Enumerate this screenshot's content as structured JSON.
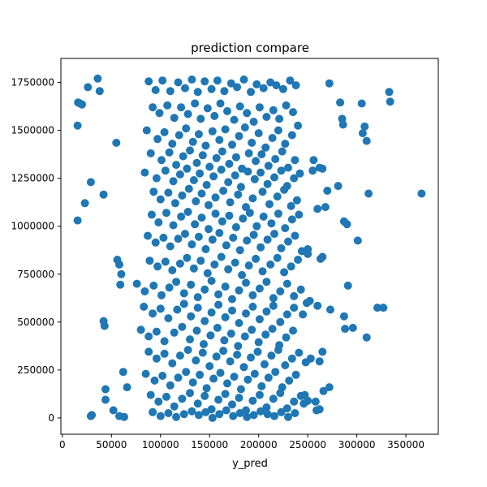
{
  "chart_data": {
    "type": "scatter",
    "title": "prediction compare",
    "xlabel": "y_pred",
    "ylabel": "",
    "xlim": [
      -1500,
      383000
    ],
    "ylim": [
      -85000,
      1875000
    ],
    "x_ticks": [
      0,
      50000,
      100000,
      150000,
      200000,
      250000,
      300000,
      350000
    ],
    "x_tick_labels": [
      "0",
      "50000",
      "100000",
      "150000",
      "200000",
      "250000",
      "300000",
      "350000"
    ],
    "y_ticks": [
      0,
      250000,
      500000,
      750000,
      1000000,
      1250000,
      1500000,
      1750000
    ],
    "y_tick_labels": [
      "0",
      "250000",
      "500000",
      "750000",
      "1000000",
      "1250000",
      "1500000",
      "1750000"
    ],
    "grid": false,
    "legend": "none",
    "marker_color": "#1f77b4",
    "series": [
      {
        "x": [
          16000,
          36000,
          38000,
          26000,
          20000,
          15500,
          18000,
          29000,
          23000,
          42000,
          15500,
          55000,
          58000,
          56000,
          59000,
          60000,
          43000,
          42000,
          30000,
          29000,
          52000,
          44000,
          44000,
          66000,
          58000,
          62000,
          63000,
          301000,
          312000,
          321000,
          327000,
          333000,
          334000,
          366000,
          272000,
          283000,
          285000,
          286000,
          308000,
          306000,
          310000,
          305000,
          290000,
          287000,
          291000,
          296000,
          288000,
          310000,
          270000,
          281000,
          268000,
          260000,
          265000,
          262000,
          255000,
          256000,
          250000,
          250000,
          265000,
          263000,
          249000,
          252000,
          245000,
          260000,
          273000,
          287000,
          265000,
          253000,
          248000,
          262000,
          272000,
          266000,
          247000,
          250000,
          262000,
          259000,
          258000,
          246000
        ],
        "y": [
          1645000,
          1770000,
          1705000,
          1725000,
          1635000,
          1525000,
          1640000,
          1230000,
          1120000,
          1165000,
          1030000,
          1435000,
          800000,
          825000,
          695000,
          750000,
          480000,
          505000,
          15000,
          10000,
          40000,
          95000,
          150000,
          160000,
          10000,
          240000,
          5000,
          925000,
          1170000,
          575000,
          575000,
          1700000,
          1650000,
          1170000,
          1745000,
          1645000,
          1560000,
          1530000,
          1520000,
          1485000,
          1445000,
          1640000,
          1010000,
          1025000,
          690000,
          470000,
          465000,
          420000,
          1185000,
          1210000,
          1100000,
          1090000,
          1300000,
          1305000,
          1290000,
          1345000,
          880000,
          855000,
          840000,
          830000,
          600000,
          610000,
          540000,
          585000,
          565000,
          530000,
          345000,
          310000,
          290000,
          295000,
          160000,
          140000,
          120000,
          90000,
          45000,
          40000,
          85000,
          75000
        ]
      },
      {
        "x": [
          88000,
          95000,
          102000,
          110000,
          118000,
          125000,
          132000,
          138000,
          145000,
          152000,
          158000,
          165000,
          172000,
          178000,
          185000,
          192000,
          198000,
          205000,
          212000,
          218000,
          225000,
          232000,
          238000,
          92000,
          99000,
          107000,
          114000,
          121000,
          128000,
          135000,
          141000,
          148000,
          155000,
          161000,
          168000,
          175000,
          181000,
          188000,
          195000,
          201000,
          208000,
          215000,
          221000,
          228000,
          235000,
          86000,
          97000,
          104000,
          112000,
          119000,
          126000,
          133000,
          139000,
          146000,
          153000,
          160000,
          166000,
          173000,
          180000,
          186000,
          193000,
          200000,
          207000,
          214000,
          220000,
          227000,
          234000,
          240000,
          90000,
          101000,
          109000,
          116000,
          123000,
          130000,
          137000,
          143000,
          150000,
          157000,
          163000,
          170000,
          177000,
          183000,
          190000,
          197000,
          203000,
          210000,
          217000,
          224000,
          230000,
          237000,
          84000,
          96000,
          105000,
          113000,
          120000,
          127000,
          134000,
          140000,
          147000,
          154000,
          162000,
          169000,
          176000,
          182000,
          189000,
          196000,
          202000,
          209000,
          216000,
          223000,
          229000,
          236000,
          242000,
          93000,
          100000,
          108000,
          115000,
          122000,
          129000,
          136000,
          142000,
          149000,
          156000,
          164000,
          171000,
          179000,
          187000,
          194000,
          204000,
          211000,
          219000,
          226000,
          233000,
          239000
        ],
        "y": [
          1755000,
          1710000,
          1760000,
          1705000,
          1750000,
          1720000,
          1765000,
          1700000,
          1755000,
          1715000,
          1760000,
          1705000,
          1745000,
          1725000,
          1765000,
          1700000,
          1740000,
          1720000,
          1750000,
          1735000,
          1715000,
          1760000,
          1735000,
          1620000,
          1590000,
          1630000,
          1565000,
          1620000,
          1585000,
          1640000,
          1560000,
          1615000,
          1575000,
          1640000,
          1600000,
          1555000,
          1625000,
          1590000,
          1545000,
          1620000,
          1570000,
          1605000,
          1560000,
          1630000,
          1595000,
          1500000,
          1455000,
          1490000,
          1430000,
          1475000,
          1510000,
          1440000,
          1480000,
          1420000,
          1495000,
          1450000,
          1505000,
          1425000,
          1470000,
          1515000,
          1435000,
          1485000,
          1410000,
          1460000,
          1500000,
          1430000,
          1475000,
          1525000,
          1380000,
          1345000,
          1385000,
          1320000,
          1365000,
          1395000,
          1330000,
          1370000,
          1310000,
          1355000,
          1390000,
          1325000,
          1360000,
          1300000,
          1380000,
          1340000,
          1375000,
          1315000,
          1350000,
          1390000,
          1305000,
          1345000,
          1280000,
          1250000,
          1290000,
          1235000,
          1270000,
          1300000,
          1240000,
          1275000,
          1215000,
          1260000,
          1295000,
          1230000,
          1265000,
          1205000,
          1285000,
          1245000,
          1280000,
          1220000,
          1255000,
          1290000,
          1210000,
          1250000,
          1275000,
          1180000,
          1140000,
          1175000,
          1120000,
          1160000,
          1195000,
          1130000,
          1170000,
          1110000,
          1150000,
          1185000,
          1125000,
          1165000,
          1100000,
          1145000,
          1180000,
          1115000,
          1155000,
          1190000,
          1105000,
          1135000
        ]
      },
      {
        "x": [
          91000,
          98000,
          106000,
          113000,
          121000,
          128000,
          135000,
          142000,
          149000,
          156000,
          163000,
          170000,
          177000,
          184000,
          191000,
          198000,
          205000,
          213000,
          220000,
          227000,
          234000,
          241000,
          87000,
          95000,
          103000,
          110000,
          118000,
          125000,
          132000,
          139000,
          146000,
          153000,
          160000,
          167000,
          174000,
          181000,
          188000,
          195000,
          202000,
          209000,
          216000,
          223000,
          230000,
          237000,
          244000,
          89000,
          97000,
          105000,
          112000,
          120000,
          127000,
          134000,
          141000,
          148000,
          155000,
          162000,
          169000,
          176000,
          183000,
          190000,
          197000,
          204000,
          212000,
          219000,
          226000,
          233000,
          240000,
          76000,
          84000,
          93000,
          101000,
          109000,
          116000,
          124000,
          131000,
          138000,
          145000,
          152000,
          159000,
          166000,
          173000,
          180000,
          187000,
          194000,
          201000,
          208000,
          215000,
          222000,
          229000,
          236000,
          243000,
          83000,
          92000,
          100000,
          108000,
          117000,
          124000,
          131000,
          138000,
          145000,
          152000,
          159000,
          166000,
          173000,
          180000,
          187000,
          194000,
          201000,
          208000,
          215000,
          222000,
          229000,
          236000,
          80000,
          88000,
          96000,
          104000,
          114000,
          122000,
          130000,
          137000,
          144000,
          151000,
          158000,
          165000,
          172000,
          179000,
          186000,
          193000,
          200000,
          207000,
          214000,
          221000,
          228000,
          235000
        ],
        "y": [
          1060000,
          1020000,
          1070000,
          1005000,
          1050000,
          1075000,
          1010000,
          1045000,
          985000,
          1065000,
          1025000,
          1055000,
          995000,
          1040000,
          1070000,
          1000000,
          1050000,
          1015000,
          1065000,
          990000,
          1035000,
          1060000,
          950000,
          915000,
          940000,
          895000,
          935000,
          960000,
          905000,
          945000,
          880000,
          930000,
          965000,
          900000,
          940000,
          875000,
          925000,
          955000,
          890000,
          930000,
          960000,
          885000,
          920000,
          950000,
          870000,
          820000,
          790000,
          815000,
          770000,
          805000,
          835000,
          780000,
          820000,
          755000,
          800000,
          840000,
          775000,
          810000,
          745000,
          795000,
          830000,
          765000,
          800000,
          835000,
          760000,
          790000,
          825000,
          700000,
          660000,
          690000,
          640000,
          680000,
          710000,
          650000,
          695000,
          630000,
          670000,
          715000,
          645000,
          685000,
          620000,
          665000,
          705000,
          640000,
          675000,
          710000,
          625000,
          660000,
          700000,
          635000,
          670000,
          580000,
          545000,
          570000,
          520000,
          565000,
          595000,
          530000,
          575000,
          505000,
          550000,
          590000,
          525000,
          560000,
          495000,
          545000,
          580000,
          515000,
          555000,
          585000,
          500000,
          540000,
          575000,
          460000,
          425000,
          450000,
          400000,
          445000,
          475000,
          410000,
          455000,
          385000,
          430000,
          470000,
          405000,
          440000,
          375000,
          425000,
          460000,
          395000,
          435000,
          465000,
          380000,
          420000,
          455000
        ]
      },
      {
        "x": [
          88000,
          96000,
          104000,
          112000,
          120000,
          128000,
          136000,
          143000,
          150000,
          157000,
          164000,
          171000,
          178000,
          185000,
          192000,
          199000,
          206000,
          213000,
          220000,
          227000,
          234000,
          241000,
          85000,
          94000,
          102000,
          110000,
          118000,
          126000,
          133000,
          140000,
          147000,
          154000,
          161000,
          168000,
          175000,
          182000,
          189000,
          196000,
          203000,
          210000,
          217000,
          224000,
          231000,
          238000,
          90000,
          98000,
          106000,
          114000,
          122000,
          130000,
          138000,
          145000,
          152000,
          159000,
          166000,
          173000,
          180000,
          187000,
          194000,
          201000,
          208000,
          215000,
          222000,
          229000,
          236000,
          243000,
          92000,
          100000,
          108000,
          116000,
          124000,
          132000,
          139000,
          146000,
          153000,
          160000,
          167000,
          174000,
          181000,
          188000,
          195000,
          202000,
          209000,
          216000,
          223000,
          230000,
          237000
        ],
        "y": [
          345000,
          310000,
          335000,
          285000,
          325000,
          355000,
          300000,
          340000,
          270000,
          320000,
          350000,
          295000,
          330000,
          265000,
          315000,
          345000,
          280000,
          325000,
          355000,
          275000,
          310000,
          340000,
          230000,
          195000,
          220000,
          170000,
          210000,
          240000,
          185000,
          225000,
          155000,
          205000,
          235000,
          180000,
          215000,
          150000,
          200000,
          230000,
          165000,
          210000,
          240000,
          160000,
          195000,
          225000,
          120000,
          85000,
          110000,
          60000,
          100000,
          130000,
          75000,
          115000,
          45000,
          95000,
          125000,
          70000,
          105000,
          40000,
          90000,
          120000,
          55000,
          100000,
          130000,
          50000,
          85000,
          115000,
          30000,
          10000,
          25000,
          5000,
          20000,
          35000,
          15000,
          30000,
          0,
          20000,
          40000,
          10000,
          25000,
          5000,
          15000,
          35000,
          20000,
          10000,
          30000,
          5000,
          25000
        ]
      }
    ]
  }
}
